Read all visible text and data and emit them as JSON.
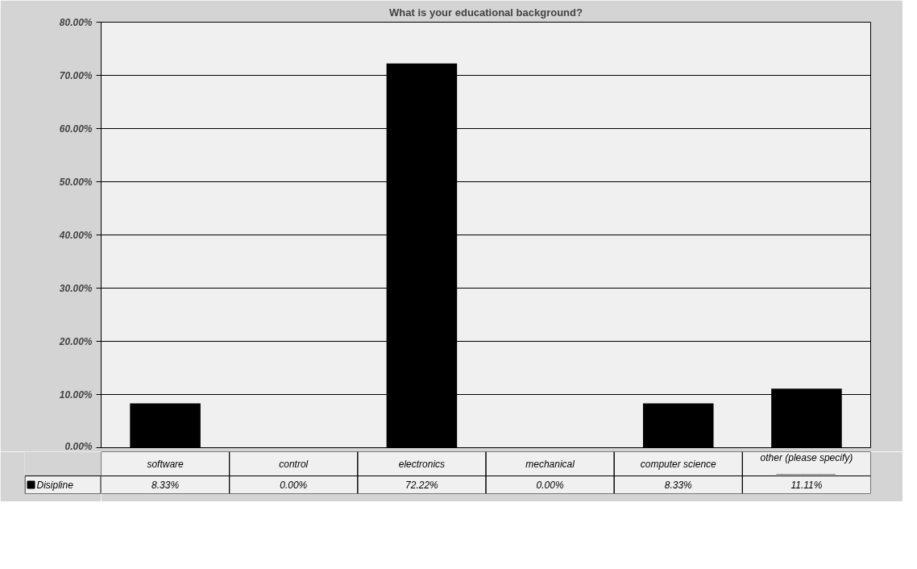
{
  "chart_data": {
    "type": "bar",
    "title": "What is your educational background?",
    "categories": [
      "software",
      "control",
      "electronics",
      "mechanical",
      "computer science",
      "other (please specify)\n___________"
    ],
    "series": [
      {
        "name": "Disipline",
        "color": "#000000",
        "values": [
          8.33,
          0.0,
          72.22,
          0.0,
          8.33,
          11.11
        ],
        "value_labels": [
          "8.33%",
          "0.00%",
          "72.22%",
          "0.00%",
          "8.33%",
          "11.11%"
        ]
      }
    ],
    "ylim": [
      0,
      80
    ],
    "yticks": [
      {
        "value": 0,
        "label": "0.00%"
      },
      {
        "value": 10,
        "label": "10.00%"
      },
      {
        "value": 20,
        "label": "20.00%"
      },
      {
        "value": 30,
        "label": "30.00%"
      },
      {
        "value": 40,
        "label": "40.00%"
      },
      {
        "value": 50,
        "label": "50.00%"
      },
      {
        "value": 60,
        "label": "60.00%"
      },
      {
        "value": 70,
        "label": "70.00%"
      },
      {
        "value": 80,
        "label": "80.00%"
      }
    ],
    "grid": "y"
  }
}
